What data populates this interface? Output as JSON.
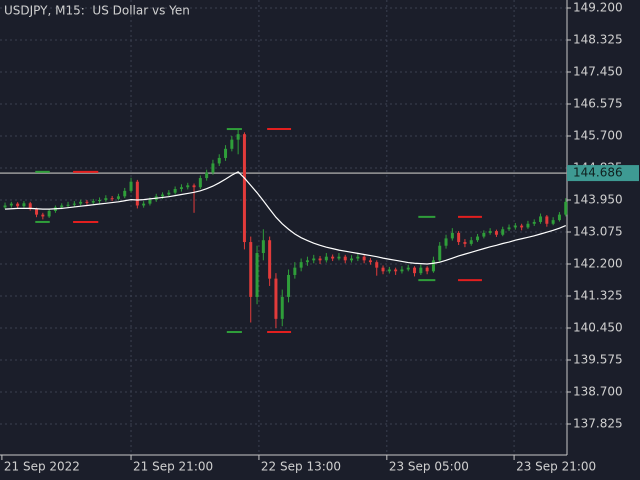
{
  "chart_data": {
    "type": "candlestick",
    "title": "USDJPY, M15:  US Dollar vs Yen",
    "background": "#1b1e2a",
    "up_color": "#2f9e3a",
    "down_color": "#e23b3b",
    "grid": true,
    "ylim": [
      136.977,
      149.419
    ],
    "yticks": [
      {
        "value": 149.2,
        "label": "149.200"
      },
      148.325,
      {
        "value": 147.45,
        "label": "147.450"
      },
      146.575,
      {
        "value": 145.7,
        "label": "145.700"
      },
      144.825,
      {
        "value": 143.95,
        "label": "143.950"
      },
      143.075,
      {
        "value": 142.2,
        "label": "142.200"
      },
      141.325,
      {
        "value": 140.45,
        "label": "140.450"
      },
      139.575,
      {
        "value": 138.7,
        "label": "138.700"
      },
      137.825
    ],
    "xlim": [
      -0.8,
      89.2
    ],
    "xticks": [
      {
        "value": -0.5,
        "label": "21 Sep 2022"
      },
      {
        "value": 20,
        "label": "21 Sep 21:00"
      },
      {
        "value": 40.3,
        "label": "22 Sep 13:00"
      },
      {
        "value": 60.6,
        "label": "23 Sep 05:00"
      },
      {
        "value": 80.8,
        "label": "23 Sep 21:00"
      }
    ],
    "candles": [
      [
        143.75,
        143.88,
        143.7,
        143.8
      ],
      [
        143.8,
        143.9,
        143.74,
        143.85
      ],
      [
        143.85,
        143.89,
        143.72,
        143.78
      ],
      [
        143.78,
        143.92,
        143.74,
        143.86
      ],
      [
        143.86,
        143.9,
        143.66,
        143.7
      ],
      [
        143.7,
        143.74,
        143.48,
        143.55
      ],
      [
        143.55,
        143.6,
        143.42,
        143.5
      ],
      [
        143.5,
        143.7,
        143.46,
        143.65
      ],
      [
        143.65,
        143.8,
        143.6,
        143.75
      ],
      [
        143.75,
        143.86,
        143.7,
        143.8
      ],
      [
        143.8,
        143.9,
        143.74,
        143.82
      ],
      [
        143.82,
        143.92,
        143.76,
        143.85
      ],
      [
        143.85,
        143.96,
        143.8,
        143.9
      ],
      [
        143.9,
        143.95,
        143.82,
        143.88
      ],
      [
        143.88,
        143.98,
        143.84,
        143.92
      ],
      [
        143.92,
        144.02,
        143.86,
        143.95
      ],
      [
        143.95,
        144.08,
        143.9,
        144.0
      ],
      [
        144.0,
        144.06,
        143.92,
        143.98
      ],
      [
        143.98,
        144.12,
        143.94,
        144.05
      ],
      [
        144.05,
        144.28,
        144.0,
        144.2
      ],
      [
        144.2,
        144.56,
        144.15,
        144.45
      ],
      [
        144.45,
        144.5,
        143.72,
        143.8
      ],
      [
        143.8,
        143.92,
        143.74,
        143.85
      ],
      [
        143.85,
        144.02,
        143.8,
        143.95
      ],
      [
        143.95,
        144.12,
        143.9,
        144.05
      ],
      [
        144.05,
        144.16,
        143.98,
        144.1
      ],
      [
        144.1,
        144.22,
        144.04,
        144.15
      ],
      [
        144.15,
        144.32,
        144.1,
        144.25
      ],
      [
        144.25,
        144.38,
        144.18,
        144.3
      ],
      [
        144.3,
        144.42,
        144.24,
        144.35
      ],
      [
        144.35,
        144.4,
        143.6,
        144.3
      ],
      [
        144.3,
        144.62,
        144.25,
        144.55
      ],
      [
        144.55,
        144.78,
        144.48,
        144.7
      ],
      [
        144.7,
        145.05,
        144.64,
        144.95
      ],
      [
        144.95,
        145.2,
        144.88,
        145.1
      ],
      [
        145.1,
        145.45,
        145.02,
        145.35
      ],
      [
        145.35,
        145.7,
        145.28,
        145.6
      ],
      [
        145.6,
        145.88,
        145.2,
        145.75
      ],
      [
        145.75,
        145.8,
        142.6,
        142.8
      ],
      [
        142.8,
        142.95,
        140.6,
        141.3
      ],
      [
        141.3,
        142.7,
        141.1,
        142.5
      ],
      [
        142.5,
        143.15,
        142.3,
        142.85
      ],
      [
        142.85,
        142.95,
        141.6,
        141.8
      ],
      [
        141.8,
        141.95,
        140.45,
        140.7
      ],
      [
        140.7,
        141.5,
        140.5,
        141.3
      ],
      [
        141.3,
        142.05,
        141.15,
        141.9
      ],
      [
        141.9,
        142.25,
        141.8,
        142.1
      ],
      [
        142.1,
        142.35,
        142.0,
        142.25
      ],
      [
        142.25,
        142.4,
        142.15,
        142.3
      ],
      [
        142.3,
        142.45,
        142.22,
        142.35
      ],
      [
        142.35,
        142.42,
        142.2,
        142.3
      ],
      [
        142.3,
        142.5,
        142.24,
        142.4
      ],
      [
        142.4,
        142.46,
        142.28,
        142.35
      ],
      [
        142.35,
        142.5,
        142.3,
        142.4
      ],
      [
        142.4,
        142.45,
        142.22,
        142.3
      ],
      [
        142.3,
        142.44,
        142.24,
        142.35
      ],
      [
        142.35,
        142.48,
        142.28,
        142.4
      ],
      [
        142.4,
        142.44,
        142.22,
        142.3
      ],
      [
        142.3,
        142.36,
        142.18,
        142.25
      ],
      [
        142.25,
        142.3,
        141.88,
        142.1
      ],
      [
        142.1,
        142.16,
        141.92,
        142.0
      ],
      [
        142.0,
        142.12,
        141.94,
        142.05
      ],
      [
        142.05,
        142.1,
        141.9,
        142.0
      ],
      [
        142.0,
        142.14,
        141.94,
        142.05
      ],
      [
        142.05,
        142.18,
        142.0,
        142.1
      ],
      [
        142.1,
        142.14,
        141.86,
        141.95
      ],
      [
        141.95,
        142.18,
        141.9,
        142.1
      ],
      [
        142.1,
        142.14,
        141.92,
        142.0
      ],
      [
        142.0,
        142.4,
        141.96,
        142.3
      ],
      [
        142.3,
        142.8,
        142.24,
        142.7
      ],
      [
        142.7,
        143.0,
        142.62,
        142.9
      ],
      [
        142.9,
        143.18,
        142.84,
        143.05
      ],
      [
        143.05,
        143.1,
        142.72,
        142.8
      ],
      [
        142.8,
        142.88,
        142.66,
        142.75
      ],
      [
        142.75,
        142.94,
        142.7,
        142.85
      ],
      [
        142.85,
        143.02,
        142.8,
        142.95
      ],
      [
        142.95,
        143.12,
        142.9,
        143.05
      ],
      [
        143.05,
        143.18,
        143.0,
        143.1
      ],
      [
        143.1,
        143.14,
        142.94,
        143.0
      ],
      [
        143.0,
        143.22,
        142.96,
        143.15
      ],
      [
        143.15,
        143.28,
        143.1,
        143.2
      ],
      [
        143.2,
        143.32,
        143.14,
        143.25
      ],
      [
        143.25,
        143.3,
        143.12,
        143.2
      ],
      [
        143.2,
        143.38,
        143.16,
        143.3
      ],
      [
        143.3,
        143.42,
        143.24,
        143.35
      ],
      [
        143.35,
        143.58,
        143.3,
        143.5
      ],
      [
        143.5,
        143.54,
        143.22,
        143.3
      ],
      [
        143.3,
        143.48,
        143.26,
        143.4
      ],
      [
        143.4,
        143.62,
        143.36,
        143.55
      ],
      [
        143.55,
        144.0,
        143.5,
        143.9
      ]
    ],
    "moving_average": {
      "color": "#ffffff",
      "values": [
        143.7,
        143.71,
        143.72,
        143.72,
        143.72,
        143.71,
        143.7,
        143.7,
        143.71,
        143.72,
        143.74,
        143.76,
        143.78,
        143.8,
        143.82,
        143.84,
        143.86,
        143.88,
        143.9,
        143.93,
        143.96,
        143.95,
        143.96,
        143.98,
        144.0,
        144.02,
        144.04,
        144.07,
        144.1,
        144.13,
        144.16,
        144.2,
        144.26,
        144.33,
        144.42,
        144.52,
        144.63,
        144.72,
        144.55,
        144.35,
        144.15,
        143.93,
        143.7,
        143.48,
        143.3,
        143.15,
        143.02,
        142.92,
        142.84,
        142.77,
        142.71,
        142.66,
        142.62,
        142.58,
        142.55,
        142.52,
        142.49,
        142.46,
        142.43,
        142.4,
        142.36,
        142.33,
        142.3,
        142.27,
        142.24,
        142.22,
        142.21,
        142.2,
        142.22,
        142.25,
        142.3,
        142.36,
        142.42,
        142.47,
        142.52,
        142.57,
        142.62,
        142.67,
        142.71,
        142.76,
        142.8,
        142.85,
        142.89,
        142.93,
        142.97,
        143.02,
        143.07,
        143.12,
        143.18,
        143.25
      ]
    },
    "levels": [
      {
        "value": 144.72,
        "start": 4.8,
        "end": 7.1,
        "color": "#2f9e3a"
      },
      {
        "value": 144.72,
        "start": 10.8,
        "end": 14.8,
        "color": "#e21f1f"
      },
      {
        "value": 143.35,
        "start": 4.8,
        "end": 7.1,
        "color": "#2f9e3a"
      },
      {
        "value": 143.35,
        "start": 10.8,
        "end": 14.8,
        "color": "#e21f1f"
      },
      {
        "value": 145.89,
        "start": 35.2,
        "end": 37.6,
        "color": "#2f9e3a"
      },
      {
        "value": 145.89,
        "start": 41.6,
        "end": 45.4,
        "color": "#e21f1f"
      },
      {
        "value": 140.34,
        "start": 35.2,
        "end": 37.6,
        "color": "#2f9e3a"
      },
      {
        "value": 140.34,
        "start": 41.6,
        "end": 45.4,
        "color": "#e21f1f"
      },
      {
        "value": 143.49,
        "start": 65.6,
        "end": 68.3,
        "color": "#2f9e3a"
      },
      {
        "value": 143.49,
        "start": 71.9,
        "end": 75.7,
        "color": "#e21f1f"
      },
      {
        "value": 141.76,
        "start": 65.6,
        "end": 68.3,
        "color": "#2f9e3a"
      },
      {
        "value": 141.76,
        "start": 71.9,
        "end": 75.7,
        "color": "#e21f1f"
      }
    ],
    "current_price": 144.686,
    "current_price_color": "#3e9a93"
  }
}
